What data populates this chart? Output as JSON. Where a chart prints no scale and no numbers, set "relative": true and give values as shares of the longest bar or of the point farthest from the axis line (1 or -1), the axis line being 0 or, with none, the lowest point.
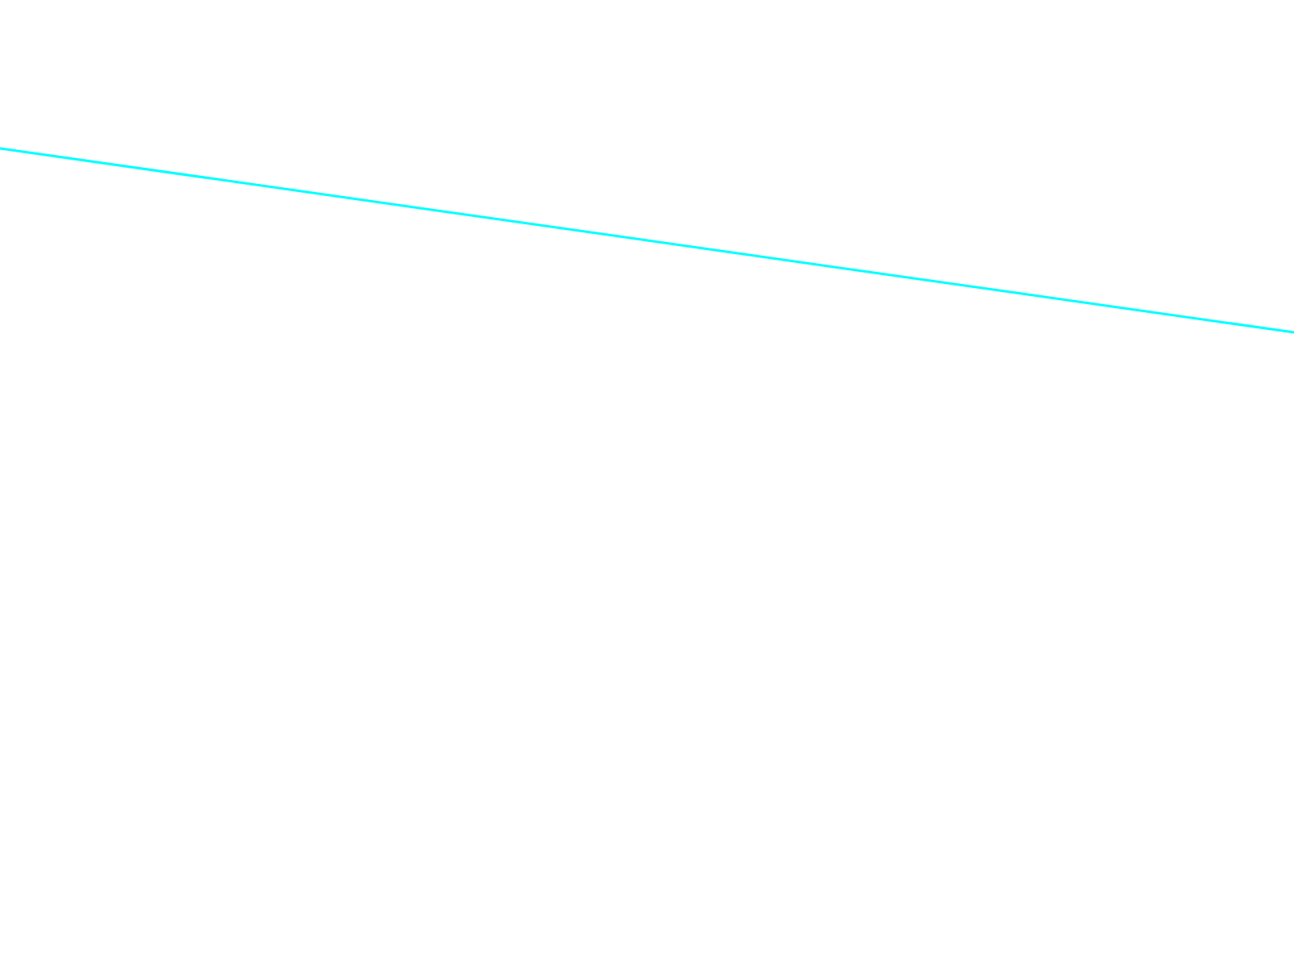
{
  "chart_data": {
    "type": "line",
    "relative": true,
    "categories": [
      null,
      null
    ],
    "series": [
      {
        "color": "#00ffff",
        "values": [
          1,
          0
        ]
      }
    ]
  }
}
